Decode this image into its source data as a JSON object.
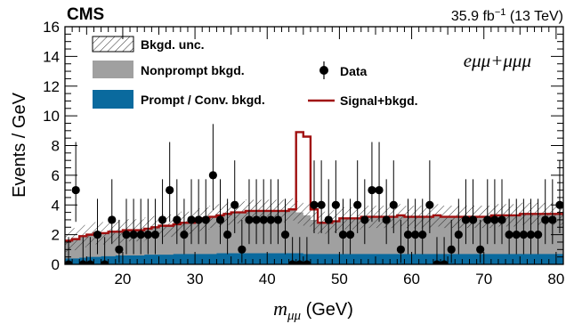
{
  "chart_data": {
    "type": "histogram",
    "title": "CMS",
    "lumi": {
      "value": "35.9 fb",
      "exp": "−1",
      "energy": " (13 TeV)"
    },
    "channel_label": "eμμ+μμμ",
    "xlabel": {
      "main": "m",
      "sub": "μμ",
      "unit": " (GeV)"
    },
    "ylabel": "Events / GeV",
    "xlim": [
      12,
      81
    ],
    "ylim": [
      0,
      16
    ],
    "x_ticks": [
      20,
      30,
      40,
      50,
      60,
      70,
      80
    ],
    "y_ticks": [
      0,
      2,
      4,
      6,
      8,
      10,
      12,
      14,
      16
    ],
    "bin_edges": [
      12,
      13,
      14,
      15,
      16,
      17,
      18,
      19,
      20,
      21,
      22,
      23,
      24,
      25,
      26,
      27,
      28,
      29,
      30,
      31,
      32,
      33,
      34,
      35,
      36,
      37,
      38,
      39,
      40,
      41,
      42,
      43,
      44,
      45,
      46,
      47,
      48,
      49,
      50,
      51,
      52,
      53,
      54,
      55,
      56,
      57,
      58,
      59,
      60,
      61,
      62,
      63,
      64,
      65,
      66,
      67,
      68,
      69,
      70,
      71,
      72,
      73,
      74,
      75,
      76,
      77,
      78,
      79,
      80,
      81
    ],
    "series": [
      {
        "name": "Prompt / Conv. bkgd.",
        "color": "#0a6a9e",
        "values": [
          0.4,
          0.4,
          0.45,
          0.5,
          0.5,
          0.55,
          0.55,
          0.6,
          0.6,
          0.6,
          0.6,
          0.65,
          0.65,
          0.65,
          0.65,
          0.7,
          0.7,
          0.7,
          0.7,
          0.7,
          0.7,
          0.75,
          0.75,
          0.75,
          0.75,
          0.75,
          0.75,
          0.75,
          0.75,
          0.75,
          0.75,
          0.75,
          0.75,
          0.7,
          0.7,
          0.7,
          0.7,
          0.7,
          0.7,
          0.7,
          0.7,
          0.7,
          0.7,
          0.7,
          0.7,
          0.7,
          0.7,
          0.7,
          0.7,
          0.7,
          0.7,
          0.7,
          0.7,
          0.7,
          0.7,
          0.7,
          0.7,
          0.7,
          0.7,
          0.7,
          0.7,
          0.7,
          0.7,
          0.7,
          0.7,
          0.7,
          0.7,
          0.7,
          0.7
        ]
      },
      {
        "name": "Nonprompt bkgd.",
        "color": "#a0a0a0",
        "total": [
          1.6,
          1.7,
          1.9,
          2.0,
          2.1,
          2.1,
          2.2,
          2.2,
          2.3,
          2.3,
          2.3,
          2.4,
          2.5,
          2.6,
          2.6,
          2.7,
          2.8,
          2.8,
          3.0,
          3.1,
          3.2,
          3.3,
          3.4,
          3.5,
          3.5,
          3.6,
          3.6,
          3.6,
          3.6,
          3.6,
          3.6,
          3.7,
          3.5,
          3.3,
          3.0,
          2.8,
          2.8,
          2.9,
          3.1,
          3.1,
          3.1,
          3.2,
          3.2,
          3.2,
          3.2,
          3.2,
          3.3,
          3.2,
          3.2,
          3.2,
          3.2,
          3.3,
          3.2,
          3.2,
          3.2,
          3.2,
          3.2,
          3.2,
          3.2,
          3.3,
          3.3,
          3.3,
          3.3,
          3.4,
          3.4,
          3.4,
          3.4,
          3.4,
          3.4
        ]
      },
      {
        "name": "Signal+bkgd.",
        "color": "#a01010",
        "values": [
          1.6,
          1.7,
          1.9,
          2.0,
          2.1,
          2.1,
          2.2,
          2.2,
          2.3,
          2.3,
          2.3,
          2.4,
          2.5,
          2.6,
          2.6,
          2.7,
          2.8,
          2.8,
          3.0,
          3.1,
          3.2,
          3.3,
          3.4,
          3.5,
          3.5,
          3.6,
          3.6,
          3.6,
          3.6,
          3.6,
          3.6,
          3.7,
          8.9,
          8.6,
          3.7,
          2.8,
          2.8,
          2.9,
          3.1,
          3.1,
          3.1,
          3.2,
          3.2,
          3.2,
          3.2,
          3.2,
          3.3,
          3.2,
          3.2,
          3.2,
          3.2,
          3.3,
          3.2,
          3.2,
          3.2,
          3.2,
          3.2,
          3.2,
          3.2,
          3.3,
          3.3,
          3.3,
          3.3,
          3.4,
          3.4,
          3.4,
          3.4,
          3.4,
          3.4
        ]
      },
      {
        "name": "Bkgd. unc.",
        "color": "#000000",
        "unc": 0.75
      },
      {
        "name": "Data",
        "color": "#000000",
        "x": [
          12.5,
          13.5,
          14.5,
          15.5,
          16.5,
          17.5,
          18.5,
          19.5,
          20.5,
          21.5,
          22.5,
          23.5,
          24.5,
          25.5,
          26.5,
          27.5,
          28.5,
          29.5,
          30.5,
          31.5,
          32.5,
          33.5,
          34.5,
          35.5,
          36.5,
          37.5,
          38.5,
          39.5,
          40.5,
          41.5,
          42.5,
          43.5,
          44.5,
          45.5,
          46.5,
          47.5,
          48.5,
          49.5,
          50.5,
          51.5,
          52.5,
          53.5,
          54.5,
          55.5,
          56.5,
          57.5,
          58.5,
          59.5,
          60.5,
          61.5,
          62.5,
          63.5,
          64.5,
          65.5,
          66.5,
          67.5,
          68.5,
          69.5,
          70.5,
          71.5,
          72.5,
          73.5,
          74.5,
          75.5,
          76.5,
          77.5,
          78.5,
          79.5,
          80.5
        ],
        "values": [
          0,
          5,
          0,
          0,
          2,
          0,
          3,
          1,
          2,
          2,
          2,
          2,
          2,
          3,
          5,
          3,
          2,
          3,
          3,
          3,
          6,
          3,
          2,
          4,
          1,
          3,
          3,
          3,
          3,
          3,
          2,
          0,
          0,
          0,
          4,
          4,
          3,
          4,
          2,
          2,
          4,
          3,
          5,
          5,
          3,
          4,
          1,
          2,
          2,
          2,
          4,
          0,
          0,
          1,
          2,
          3,
          3,
          1,
          3,
          3,
          3,
          2,
          2,
          2,
          2,
          2,
          3,
          3,
          4
        ]
      }
    ],
    "legend": {
      "placement": "top-left",
      "entries": [
        "Bkgd. unc.",
        "Nonprompt bkgd.",
        "Prompt / Conv. bkgd.",
        "Data",
        "Signal+bkgd."
      ]
    }
  }
}
